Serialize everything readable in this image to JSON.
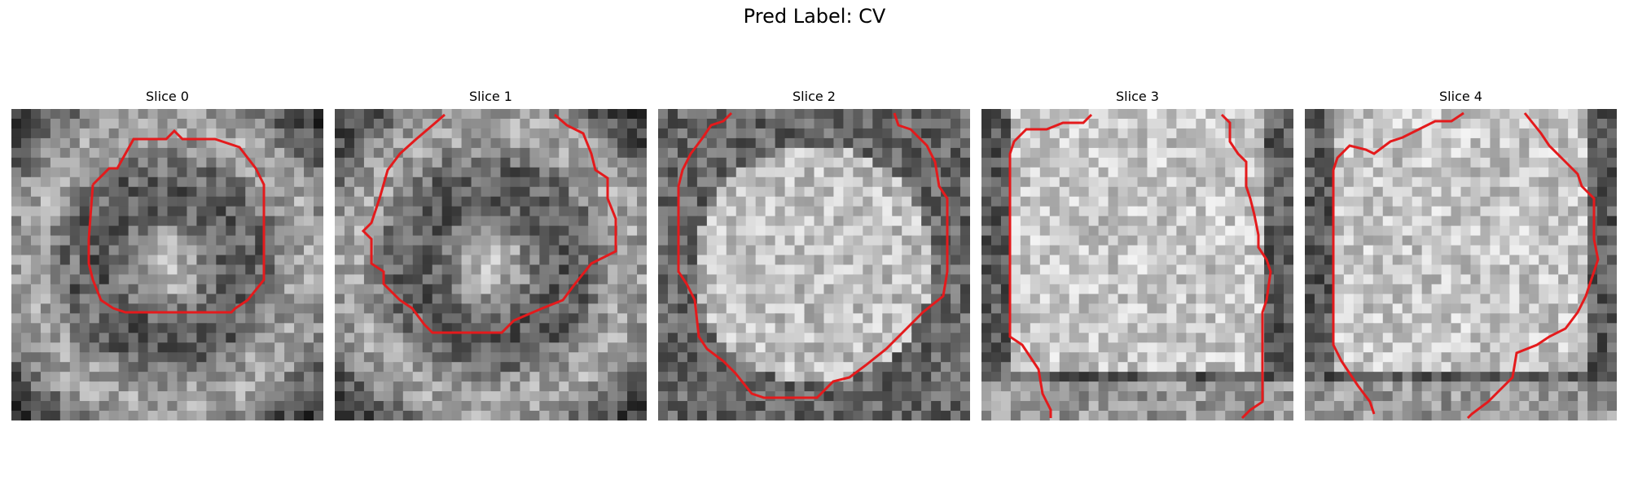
{
  "figure": {
    "title": "Pred Label: CV"
  },
  "panels": [
    {
      "title": "Slice 0"
    },
    {
      "title": "Slice 1"
    },
    {
      "title": "Slice 2"
    },
    {
      "title": "Slice 3"
    },
    {
      "title": "Slice 4"
    }
  ],
  "colors": {
    "contour": "#e41a1c",
    "background": "#ffffff"
  }
}
